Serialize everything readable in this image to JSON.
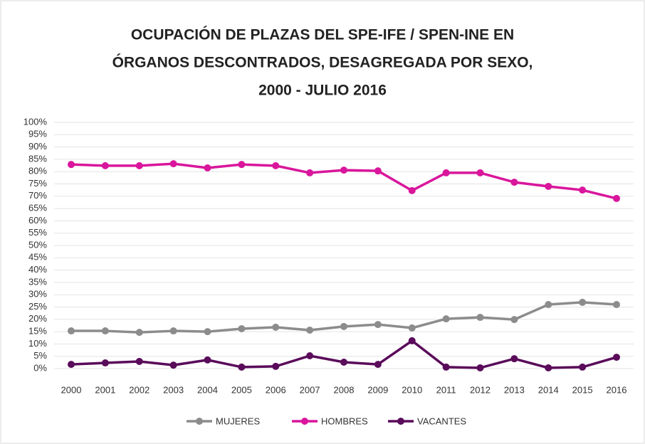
{
  "chart_data": {
    "type": "line",
    "title": [
      "OCUPACIÓN DE PLAZAS DEL SPE-IFE / SPEN-INE EN",
      "ÓRGANOS DESCONTRADOS, DESAGREGADA POR SEXO,",
      "2000 - JULIO 2016"
    ],
    "categories": [
      "2000",
      "2001",
      "2002",
      "2003",
      "2004",
      "2005",
      "2006",
      "2007",
      "2008",
      "2009",
      "2010",
      "2011",
      "2012",
      "2013",
      "2014",
      "2015",
      "2016"
    ],
    "series": [
      {
        "name": "MUJERES",
        "color": "#8c8c8c",
        "values": [
          15.3,
          15.3,
          14.7,
          15.3,
          15.0,
          16.2,
          16.8,
          15.6,
          17.1,
          17.9,
          16.5,
          20.2,
          20.8,
          19.9,
          26.0,
          26.9,
          26.0
        ]
      },
      {
        "name": "HOMBRES",
        "color": "#d9169c",
        "values": [
          82.9,
          82.4,
          82.4,
          83.2,
          81.5,
          82.9,
          82.4,
          79.5,
          80.6,
          80.3,
          72.3,
          79.5,
          79.5,
          75.7,
          74.0,
          72.5,
          69.1
        ]
      },
      {
        "name": "VACANTES",
        "color": "#5a0b5a",
        "values": [
          1.7,
          2.3,
          2.9,
          1.4,
          3.5,
          0.6,
          0.9,
          5.2,
          2.6,
          1.7,
          11.3,
          0.6,
          0.3,
          4.0,
          0.3,
          0.6,
          4.6
        ]
      }
    ],
    "ylim": [
      0,
      100
    ],
    "yticks": [
      {
        "value": 0,
        "label": "0%"
      },
      {
        "value": 5,
        "label": "5%"
      },
      {
        "value": 10,
        "label": "10%"
      },
      {
        "value": 15,
        "label": "15%"
      },
      {
        "value": 20,
        "label": "20%"
      },
      {
        "value": 25,
        "label": "25%"
      },
      {
        "value": 30,
        "label": "30%"
      },
      {
        "value": 35,
        "label": "35%"
      },
      {
        "value": 40,
        "label": "40%"
      },
      {
        "value": 45,
        "label": "45%"
      },
      {
        "value": 50,
        "label": "50%"
      },
      {
        "value": 55,
        "label": "55%"
      },
      {
        "value": 60,
        "label": "60%"
      },
      {
        "value": 65,
        "label": "65%"
      },
      {
        "value": 70,
        "label": "70%"
      },
      {
        "value": 75,
        "label": "75%"
      },
      {
        "value": 80,
        "label": "80%"
      },
      {
        "value": 85,
        "label": "85%"
      },
      {
        "value": 90,
        "label": "90%"
      },
      {
        "value": 95,
        "label": "95%"
      },
      {
        "value": 100,
        "label": "100%"
      }
    ],
    "grid": true,
    "legend": "bottom"
  }
}
